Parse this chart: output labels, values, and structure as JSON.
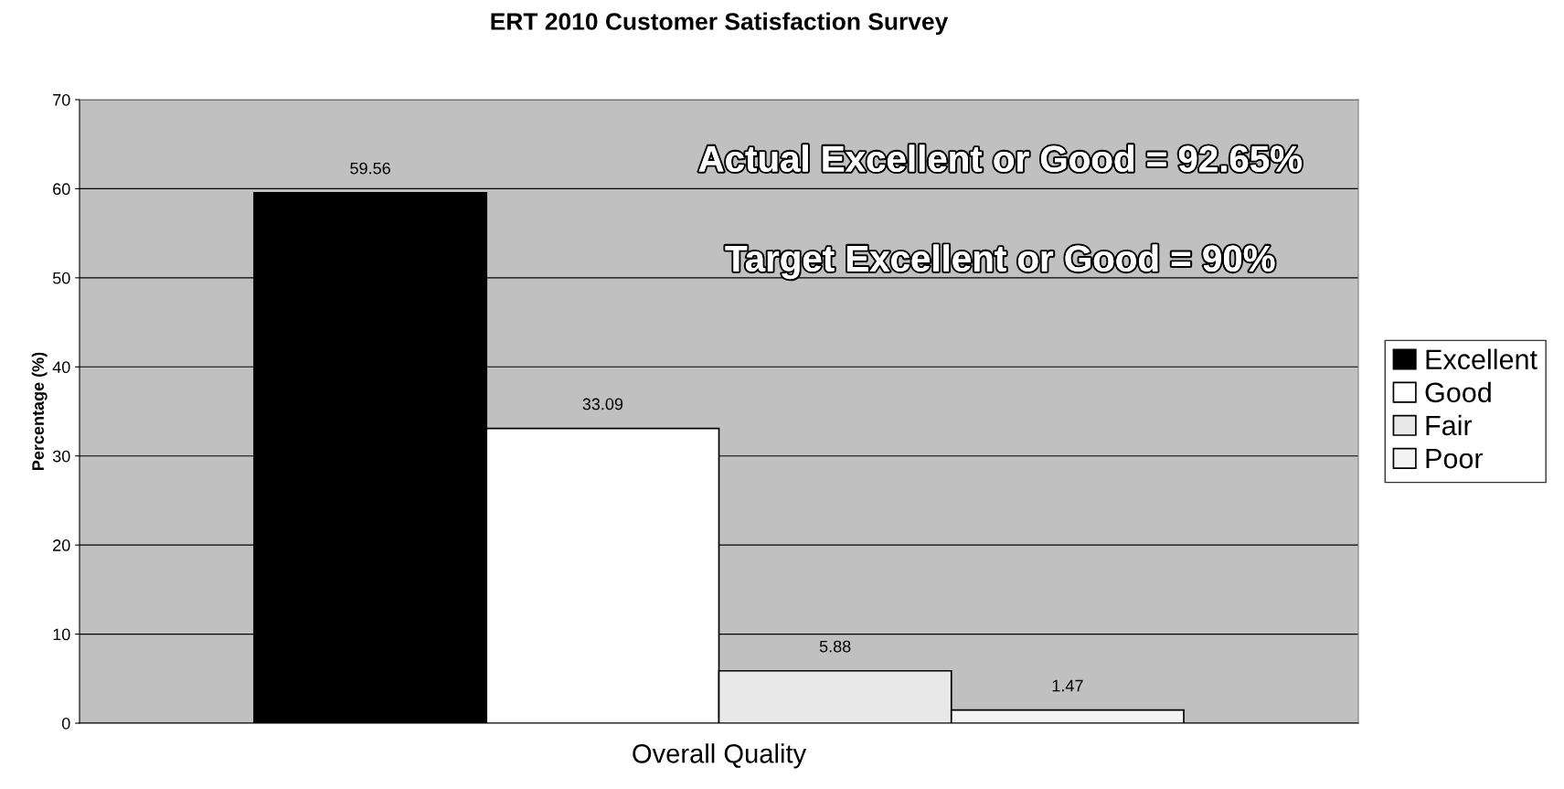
{
  "chart_data": {
    "type": "bar",
    "title": "ERT 2010 Customer Satisfaction Survey",
    "ylabel": "Percentage (%)",
    "categories": [
      "Overall Quality"
    ],
    "series": [
      {
        "name": "Excellent",
        "color": "#000000",
        "values": [
          59.56
        ]
      },
      {
        "name": "Good",
        "color": "#ffffff",
        "values": [
          33.09
        ]
      },
      {
        "name": "Fair",
        "color": "#e8e8e8",
        "values": [
          5.88
        ]
      },
      {
        "name": "Poor",
        "color": "#f4f4f4",
        "values": [
          1.47
        ]
      }
    ],
    "ylim": [
      0,
      70
    ],
    "yticks": [
      0,
      10,
      20,
      30,
      40,
      50,
      60,
      70
    ],
    "grid": "y",
    "legend": "right",
    "data_labels": true,
    "annotations": [
      "Actual Excellent or Good = 92.65%",
      "Target Excellent or Good = 90%"
    ]
  }
}
